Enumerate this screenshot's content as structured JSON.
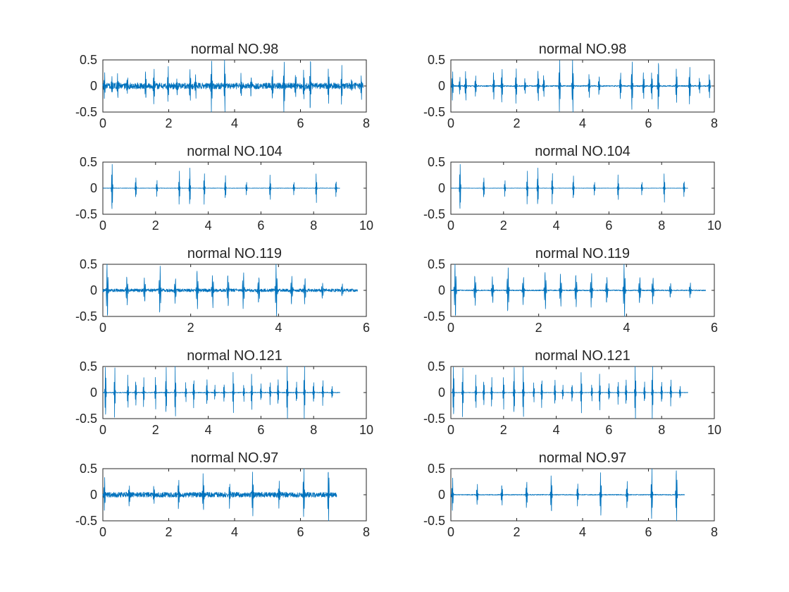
{
  "figure": {
    "line_color": "#0072BD",
    "axis_color": "#262626",
    "background": "#ffffff"
  },
  "chart_data": [
    {
      "type": "line",
      "title": "normal NO.98",
      "xlabel": "",
      "ylabel": "",
      "xlim": [
        0,
        8
      ],
      "ylim": [
        -0.5,
        0.5
      ],
      "xticks": [
        0,
        2,
        4,
        6,
        8
      ],
      "yticks": [
        -0.5,
        0,
        0.5
      ],
      "duration": 7.9,
      "noise": 0.06,
      "peaks": [
        0.05,
        0.27,
        0.45,
        0.75,
        1.3,
        1.55,
        1.98,
        2.25,
        2.65,
        2.82,
        3.3,
        3.7,
        4.2,
        4.5,
        5.15,
        5.5,
        5.85,
        6.1,
        6.3,
        6.85,
        7.25,
        7.55,
        7.85
      ]
    },
    {
      "type": "line",
      "title": "normal NO.98",
      "xlabel": "",
      "ylabel": "",
      "xlim": [
        0,
        8
      ],
      "ylim": [
        -0.5,
        0.5
      ],
      "xticks": [
        0,
        2,
        4,
        6,
        8
      ],
      "yticks": [
        -0.5,
        0,
        0.5
      ],
      "duration": 7.9,
      "noise": 0.012,
      "peaks": [
        0.05,
        0.27,
        0.45,
        0.75,
        1.3,
        1.55,
        1.98,
        2.25,
        2.65,
        2.82,
        3.3,
        3.7,
        4.2,
        4.5,
        5.15,
        5.5,
        5.85,
        6.1,
        6.3,
        6.85,
        7.25,
        7.55,
        7.85
      ]
    },
    {
      "type": "line",
      "title": "normal NO.104",
      "xlabel": "",
      "ylabel": "",
      "xlim": [
        0,
        10
      ],
      "ylim": [
        -0.5,
        0.5
      ],
      "xticks": [
        0,
        2,
        4,
        6,
        8,
        10
      ],
      "yticks": [
        -0.5,
        0,
        0.5
      ],
      "duration": 9.0,
      "noise": 0.004,
      "peaks": [
        0.35,
        1.25,
        2.05,
        2.9,
        3.3,
        3.85,
        4.65,
        5.45,
        6.35,
        7.25,
        8.1,
        8.85
      ]
    },
    {
      "type": "line",
      "title": "normal NO.104",
      "xlabel": "",
      "ylabel": "",
      "xlim": [
        0,
        10
      ],
      "ylim": [
        -0.5,
        0.5
      ],
      "xticks": [
        0,
        2,
        4,
        6,
        8,
        10
      ],
      "yticks": [
        -0.5,
        0,
        0.5
      ],
      "duration": 9.0,
      "noise": 0.003,
      "peaks": [
        0.35,
        1.25,
        2.05,
        2.9,
        3.3,
        3.85,
        4.65,
        5.45,
        6.35,
        7.25,
        8.1,
        8.85
      ]
    },
    {
      "type": "line",
      "title": "normal NO.119",
      "xlabel": "",
      "ylabel": "",
      "xlim": [
        0,
        6
      ],
      "ylim": [
        -0.5,
        0.5
      ],
      "xticks": [
        0,
        2,
        4,
        6
      ],
      "yticks": [
        -0.5,
        0,
        0.5
      ],
      "duration": 5.8,
      "noise": 0.03,
      "peaks": [
        0.1,
        0.55,
        0.95,
        1.3,
        1.65,
        2.15,
        2.5,
        2.85,
        3.2,
        3.55,
        3.95,
        4.3,
        4.6,
        5.0,
        5.45
      ]
    },
    {
      "type": "line",
      "title": "normal NO.119",
      "xlabel": "",
      "ylabel": "",
      "xlim": [
        0,
        6
      ],
      "ylim": [
        -0.5,
        0.5
      ],
      "xticks": [
        0,
        2,
        4,
        6
      ],
      "yticks": [
        -0.5,
        0,
        0.5
      ],
      "duration": 5.8,
      "noise": 0.01,
      "peaks": [
        0.1,
        0.55,
        0.95,
        1.3,
        1.65,
        2.15,
        2.5,
        2.85,
        3.2,
        3.55,
        3.95,
        4.3,
        4.6,
        5.0,
        5.45
      ]
    },
    {
      "type": "line",
      "title": "normal NO.121",
      "xlabel": "",
      "ylabel": "",
      "xlim": [
        0,
        10
      ],
      "ylim": [
        -0.5,
        0.5
      ],
      "xticks": [
        0,
        2,
        4,
        6,
        8,
        10
      ],
      "yticks": [
        -0.5,
        0,
        0.5
      ],
      "duration": 9.0,
      "noise": 0.008,
      "peaks": [
        0.1,
        0.45,
        0.95,
        1.25,
        1.55,
        2.0,
        2.4,
        2.75,
        3.15,
        3.45,
        3.95,
        4.25,
        4.6,
        4.95,
        5.35,
        5.65,
        6.0,
        6.35,
        6.65,
        7.0,
        7.35,
        7.65,
        8.0,
        8.35,
        8.7
      ]
    },
    {
      "type": "line",
      "title": "normal NO.121",
      "xlabel": "",
      "ylabel": "",
      "xlim": [
        0,
        10
      ],
      "ylim": [
        -0.5,
        0.5
      ],
      "xticks": [
        0,
        2,
        4,
        6,
        8,
        10
      ],
      "yticks": [
        -0.5,
        0,
        0.5
      ],
      "duration": 9.0,
      "noise": 0.005,
      "peaks": [
        0.1,
        0.45,
        0.95,
        1.25,
        1.55,
        2.0,
        2.4,
        2.75,
        3.15,
        3.45,
        3.95,
        4.25,
        4.6,
        4.95,
        5.35,
        5.65,
        6.0,
        6.35,
        6.65,
        7.0,
        7.35,
        7.65,
        8.0,
        8.35,
        8.7
      ]
    },
    {
      "type": "line",
      "title": "normal NO.97",
      "xlabel": "",
      "ylabel": "",
      "xlim": [
        0,
        8
      ],
      "ylim": [
        -0.5,
        0.5
      ],
      "xticks": [
        0,
        2,
        4,
        6,
        8
      ],
      "yticks": [
        -0.5,
        0,
        0.5
      ],
      "duration": 7.1,
      "noise": 0.05,
      "peaks": [
        0.05,
        0.8,
        1.55,
        2.3,
        3.05,
        3.85,
        4.55,
        5.35,
        6.1,
        6.85
      ]
    },
    {
      "type": "line",
      "title": "normal NO.97",
      "xlabel": "",
      "ylabel": "",
      "xlim": [
        0,
        8
      ],
      "ylim": [
        -0.5,
        0.5
      ],
      "xticks": [
        0,
        2,
        4,
        6,
        8
      ],
      "yticks": [
        -0.5,
        0,
        0.5
      ],
      "duration": 7.1,
      "noise": 0.008,
      "peaks": [
        0.05,
        0.8,
        1.55,
        2.3,
        3.05,
        3.85,
        4.55,
        5.35,
        6.1,
        6.85
      ]
    }
  ]
}
